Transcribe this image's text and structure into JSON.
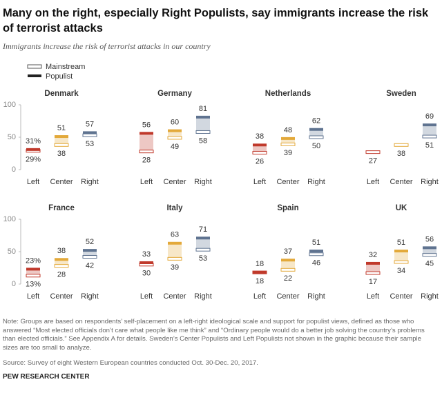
{
  "header": {
    "title": "Many on the right, especially Right Populists, say immigrants increase the risk of terrorist attacks",
    "subtitle": "Immigrants increase the risk of terrorist attacks in our country"
  },
  "footer": {
    "note": "Note: Groups are based on respondents’ self-placement on a left-right ideological scale and support for populist views, defined as those who answered “Most elected officials don’t care what people like me think” and “Ordinary people would do a better job solving the country’s problems than elected officials.” See Appendix A for details. Sweden’s Center Populists and Left Populists not shown in the graphic because their sample sizes are too small to analyze.",
    "source": "Source: Survey of eight Western European countries conducted Oct. 30-Dec. 20, 2017.",
    "brand": "PEW RESEARCH CENTER"
  },
  "chart_data": [
    {
      "type": "range",
      "title": "Denmark",
      "categories": [
        "Left",
        "Center",
        "Right"
      ],
      "colors": [
        "#c0392b",
        "#e3a93a",
        "#5f7390"
      ],
      "ylim": [
        0,
        100
      ],
      "yticks": [
        0,
        50,
        100
      ],
      "series": [
        {
          "name": "Mainstream",
          "values": [
            29,
            38,
            53
          ],
          "value_labels": [
            "29%",
            "38",
            "53"
          ]
        },
        {
          "name": "Populist",
          "values": [
            31,
            51,
            57
          ],
          "value_labels": [
            "31%",
            "51",
            "57"
          ]
        }
      ]
    },
    {
      "type": "range",
      "title": "Germany",
      "categories": [
        "Left",
        "Center",
        "Right"
      ],
      "colors": [
        "#c0392b",
        "#e3a93a",
        "#5f7390"
      ],
      "ylim": [
        0,
        100
      ],
      "series": [
        {
          "name": "Mainstream",
          "values": [
            28,
            49,
            58
          ]
        },
        {
          "name": "Populist",
          "values": [
            56,
            60,
            81
          ]
        }
      ]
    },
    {
      "type": "range",
      "title": "Netherlands",
      "categories": [
        "Left",
        "Center",
        "Right"
      ],
      "colors": [
        "#c0392b",
        "#e3a93a",
        "#5f7390"
      ],
      "ylim": [
        0,
        100
      ],
      "series": [
        {
          "name": "Mainstream",
          "values": [
            26,
            39,
            50
          ]
        },
        {
          "name": "Populist",
          "values": [
            38,
            48,
            62
          ]
        }
      ]
    },
    {
      "type": "range",
      "title": "Sweden",
      "categories": [
        "Left",
        "Center",
        "Right"
      ],
      "colors": [
        "#c0392b",
        "#e3a93a",
        "#5f7390"
      ],
      "ylim": [
        0,
        100
      ],
      "series": [
        {
          "name": "Mainstream",
          "values": [
            27,
            38,
            51
          ]
        },
        {
          "name": "Populist",
          "values": [
            null,
            null,
            69
          ]
        }
      ]
    },
    {
      "type": "range",
      "title": "France",
      "categories": [
        "Left",
        "Center",
        "Right"
      ],
      "colors": [
        "#c0392b",
        "#e3a93a",
        "#5f7390"
      ],
      "ylim": [
        0,
        100
      ],
      "yticks": [
        0,
        50,
        100
      ],
      "series": [
        {
          "name": "Mainstream",
          "values": [
            13,
            28,
            42
          ],
          "value_labels": [
            "13%",
            "28",
            "42"
          ]
        },
        {
          "name": "Populist",
          "values": [
            23,
            38,
            52
          ],
          "value_labels": [
            "23%",
            "38",
            "52"
          ]
        }
      ]
    },
    {
      "type": "range",
      "title": "Italy",
      "categories": [
        "Left",
        "Center",
        "Right"
      ],
      "colors": [
        "#c0392b",
        "#e3a93a",
        "#5f7390"
      ],
      "ylim": [
        0,
        100
      ],
      "series": [
        {
          "name": "Mainstream",
          "values": [
            30,
            39,
            53
          ]
        },
        {
          "name": "Populist",
          "values": [
            33,
            63,
            71
          ]
        }
      ]
    },
    {
      "type": "range",
      "title": "Spain",
      "categories": [
        "Left",
        "Center",
        "Right"
      ],
      "colors": [
        "#c0392b",
        "#e3a93a",
        "#5f7390"
      ],
      "ylim": [
        0,
        100
      ],
      "series": [
        {
          "name": "Mainstream",
          "values": [
            18,
            22,
            46
          ]
        },
        {
          "name": "Populist",
          "values": [
            18,
            37,
            51
          ]
        }
      ]
    },
    {
      "type": "range",
      "title": "UK",
      "categories": [
        "Left",
        "Center",
        "Right"
      ],
      "colors": [
        "#c0392b",
        "#e3a93a",
        "#5f7390"
      ],
      "ylim": [
        0,
        100
      ],
      "series": [
        {
          "name": "Mainstream",
          "values": [
            17,
            34,
            45
          ]
        },
        {
          "name": "Populist",
          "values": [
            32,
            51,
            56
          ]
        }
      ]
    }
  ]
}
